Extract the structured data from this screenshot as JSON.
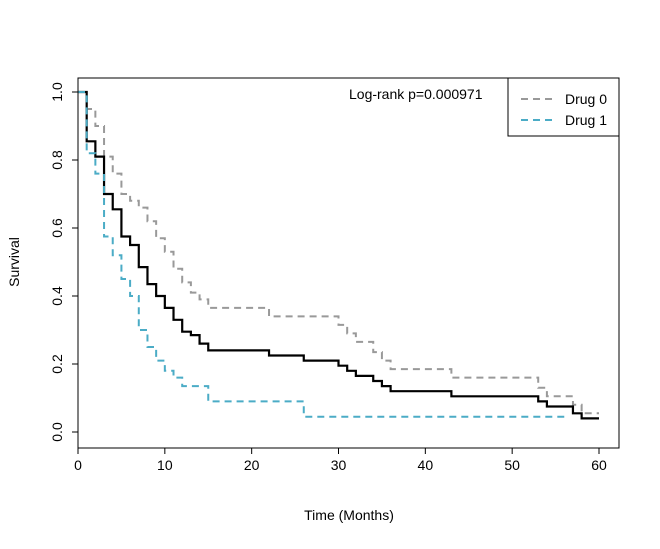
{
  "chart_data": {
    "type": "line",
    "title": "",
    "xlabel": "Time (Months)",
    "ylabel": "Survival",
    "xlim": [
      0,
      60
    ],
    "ylim": [
      0,
      1
    ],
    "x_ticks": [
      "0",
      "10",
      "20",
      "30",
      "40",
      "50",
      "60"
    ],
    "y_ticks": [
      "0.0",
      "0.2",
      "0.4",
      "0.6",
      "0.8",
      "1.0"
    ],
    "annotation": "Log-rank p=0.000971",
    "legend": {
      "position": "top-right",
      "entries": [
        {
          "label": "Drug 0",
          "color": "#999999",
          "dash": "dashed"
        },
        {
          "label": "Drug 1",
          "color": "#4BACC6",
          "dash": "dashed"
        }
      ]
    },
    "series": [
      {
        "name": "Drug 0",
        "color": "#999999",
        "dash": "dashed",
        "steps": [
          [
            0,
            1.0
          ],
          [
            1,
            0.95
          ],
          [
            2,
            0.9
          ],
          [
            3,
            0.81
          ],
          [
            4,
            0.76
          ],
          [
            5,
            0.7
          ],
          [
            6,
            0.68
          ],
          [
            7,
            0.66
          ],
          [
            8,
            0.62
          ],
          [
            9,
            0.57
          ],
          [
            10,
            0.53
          ],
          [
            11,
            0.48
          ],
          [
            12,
            0.44
          ],
          [
            13,
            0.41
          ],
          [
            14,
            0.39
          ],
          [
            15,
            0.365
          ],
          [
            22,
            0.34
          ],
          [
            30,
            0.315
          ],
          [
            31,
            0.29
          ],
          [
            32,
            0.265
          ],
          [
            34,
            0.235
          ],
          [
            35,
            0.21
          ],
          [
            36,
            0.185
          ],
          [
            43,
            0.16
          ],
          [
            53,
            0.13
          ],
          [
            54,
            0.105
          ],
          [
            57,
            0.08
          ],
          [
            58,
            0.055
          ],
          [
            60,
            0.055
          ]
        ]
      },
      {
        "name": "",
        "color": "#000000",
        "dash": "solid",
        "steps": [
          [
            0,
            1.0
          ],
          [
            1,
            0.855
          ],
          [
            2,
            0.81
          ],
          [
            3,
            0.7
          ],
          [
            4,
            0.655
          ],
          [
            5,
            0.575
          ],
          [
            6,
            0.55
          ],
          [
            7,
            0.485
          ],
          [
            8,
            0.435
          ],
          [
            9,
            0.4
          ],
          [
            10,
            0.365
          ],
          [
            11,
            0.33
          ],
          [
            12,
            0.295
          ],
          [
            13,
            0.285
          ],
          [
            14,
            0.26
          ],
          [
            15,
            0.24
          ],
          [
            22,
            0.225
          ],
          [
            26,
            0.21
          ],
          [
            30,
            0.195
          ],
          [
            31,
            0.18
          ],
          [
            32,
            0.165
          ],
          [
            34,
            0.15
          ],
          [
            35,
            0.135
          ],
          [
            36,
            0.12
          ],
          [
            43,
            0.105
          ],
          [
            53,
            0.09
          ],
          [
            54,
            0.075
          ],
          [
            57,
            0.055
          ],
          [
            58,
            0.04
          ],
          [
            60,
            0.04
          ]
        ]
      },
      {
        "name": "Drug 1",
        "color": "#4BACC6",
        "dash": "dashed",
        "steps": [
          [
            0,
            1.0
          ],
          [
            1,
            0.82
          ],
          [
            2,
            0.76
          ],
          [
            3,
            0.575
          ],
          [
            4,
            0.52
          ],
          [
            5,
            0.45
          ],
          [
            6,
            0.4
          ],
          [
            7,
            0.3
          ],
          [
            8,
            0.25
          ],
          [
            9,
            0.21
          ],
          [
            10,
            0.18
          ],
          [
            11,
            0.16
          ],
          [
            12,
            0.135
          ],
          [
            15,
            0.09
          ],
          [
            26,
            0.045
          ],
          [
            56,
            0.045
          ]
        ]
      }
    ]
  }
}
